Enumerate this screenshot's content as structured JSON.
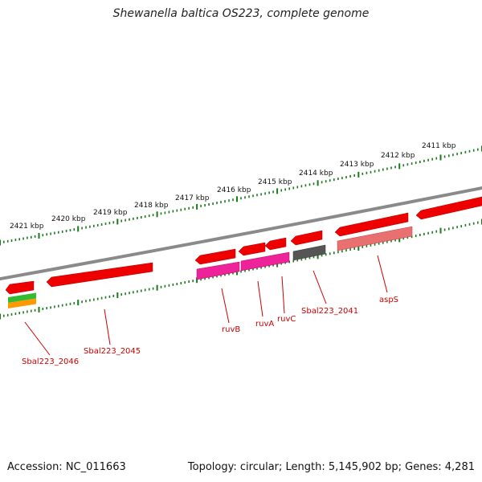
{
  "title": "Shewanella baltica OS223, complete genome",
  "accession": "Accession: NC_011663",
  "summary": "Topology: circular; Length: 5,145,902 bp; Genes: 4,281",
  "colors": {
    "backbone": "#8a8a8a",
    "tick": "#1a7a1a",
    "gene_red": "#ee0000",
    "gene_pink": "#ee2299",
    "gene_gray": "#555555",
    "gene_salmon": "#e87070",
    "gene_green": "#33bb33",
    "gene_orange": "#ff9900",
    "label": "#cc0000"
  },
  "kbp_labels": [
    "2421 kbp",
    "2420 kbp",
    "2419 kbp",
    "2418 kbp",
    "2417 kbp",
    "2416 kbp",
    "2415 kbp",
    "2414 kbp",
    "2413 kbp",
    "2412 kbp",
    "2411 kbp"
  ],
  "gene_labels": [
    "Sbal223_2046",
    "Sbal223_2045",
    "ruvB",
    "ruvA",
    "ruvC",
    "Sbal223_2041",
    "aspS"
  ]
}
